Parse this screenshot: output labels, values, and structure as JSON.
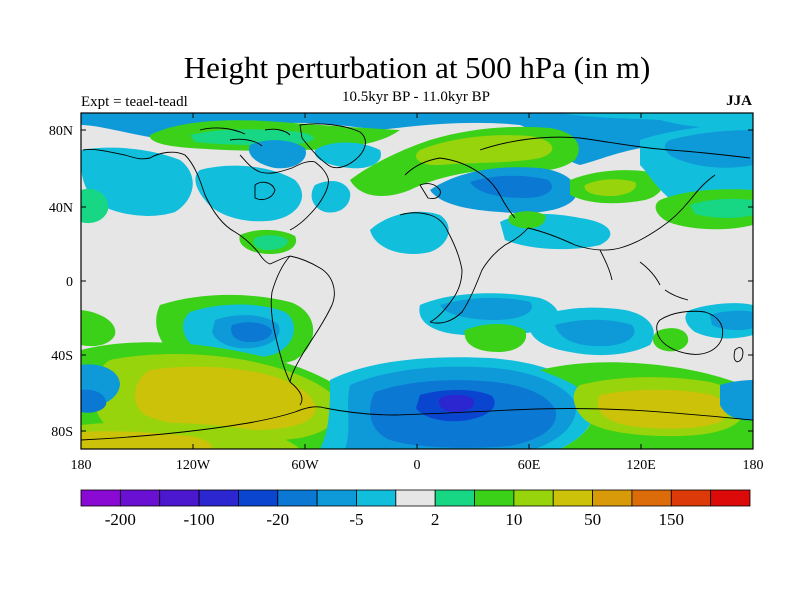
{
  "figure": {
    "title": "Height perturbation at 500 hPa (in m)",
    "subtitle": "10.5kyr BP - 11.0kyr BP",
    "left_label": "Expt = teael-teadl",
    "right_label": "JJA"
  },
  "axes": {
    "lat_ticks": [
      "80N",
      "40N",
      "0",
      "40S",
      "80S"
    ],
    "lon_ticks": [
      "180",
      "120W",
      "60W",
      "0",
      "60E",
      "120E",
      "180"
    ]
  },
  "colorbar": {
    "colors": [
      "#8a0ad3",
      "#6a10d3",
      "#4b18d0",
      "#2b26d0",
      "#0a45d0",
      "#0b78d3",
      "#0e9ad8",
      "#11bedc",
      "#e6e6e6",
      "#17d785",
      "#3bd119",
      "#97d40b",
      "#ccc20a",
      "#d99a0a",
      "#dc6c0a",
      "#dd3a0a",
      "#dd0a0a"
    ],
    "labels": [
      {
        "text": "-200",
        "boundary": 1
      },
      {
        "text": "-100",
        "boundary": 3
      },
      {
        "text": "-20",
        "boundary": 5
      },
      {
        "text": "-5",
        "boundary": 7
      },
      {
        "text": "2",
        "boundary": 9
      },
      {
        "text": "10",
        "boundary": 11
      },
      {
        "text": "50",
        "boundary": 13
      },
      {
        "text": "150",
        "boundary": 15
      }
    ]
  },
  "field_colors": {
    "background": "#e6e6e6",
    "neg_light": "#11bedc",
    "neg_mid": "#0e9ad8",
    "neg_deep": "#0b78d3",
    "neg_deepest": "#0a45d0",
    "pos_light": "#17d785",
    "pos_mid": "#3bd119",
    "pos_yellowgreen": "#97d40b",
    "pos_olive": "#ccc20a"
  }
}
